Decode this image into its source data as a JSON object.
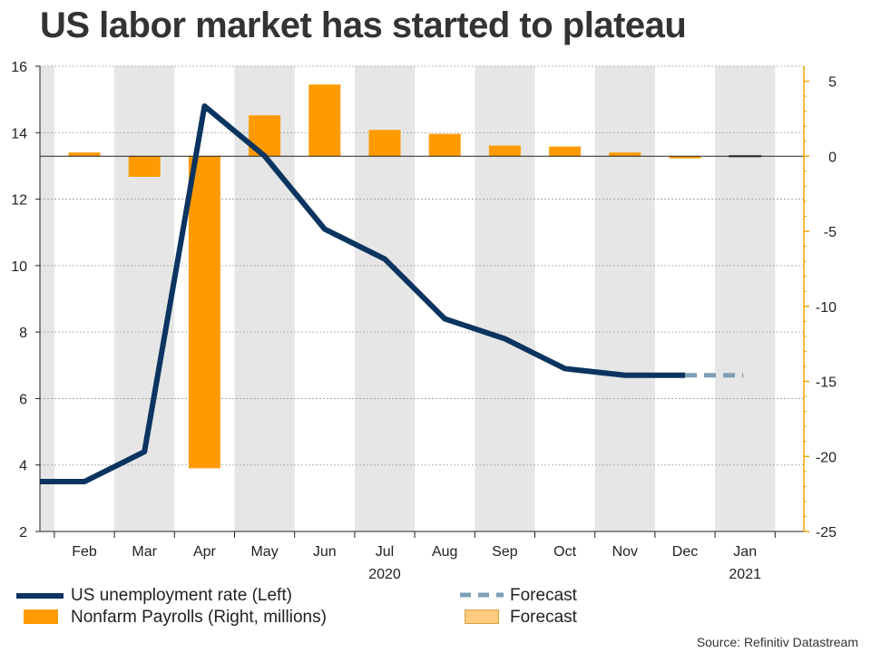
{
  "title": "US labor market has started to plateau",
  "source": "Source: Refinitiv Datastream",
  "colors": {
    "unemployment": "#0b3460",
    "payrolls": "#ff9b00",
    "forecast_line": "#7f9fb5",
    "forecast_bar": "#ffcc7f",
    "shading": "#e6e6e6",
    "right_axis": "#f0a500"
  },
  "legend": {
    "unemployment": "US unemployment rate (Left)",
    "payrolls": "Nonfarm Payrolls (Right, millions)",
    "forecast_line": "Forecast",
    "forecast_bar": "Forecast"
  },
  "chart_data": {
    "type": "bar",
    "categories": [
      "Feb",
      "Mar",
      "Apr",
      "May",
      "Jun",
      "Jul",
      "Aug",
      "Sep",
      "Oct",
      "Nov",
      "Dec",
      "Jan"
    ],
    "year_labels": [
      {
        "label": "2020",
        "category": "Jul"
      },
      {
        "label": "2021",
        "category": "Jan"
      }
    ],
    "left_axis": {
      "ylim": [
        2,
        16
      ],
      "ticks": [
        2,
        4,
        6,
        8,
        10,
        12,
        14,
        16
      ]
    },
    "right_axis": {
      "ylim": [
        -25,
        6
      ],
      "ticks": [
        5,
        0,
        -5,
        -10,
        -15,
        -20,
        -25
      ]
    },
    "grid": true,
    "shaded_months": [
      "Jan",
      "Mar",
      "May",
      "Jul",
      "Sep",
      "Nov",
      "Jan"
    ],
    "series": [
      {
        "name": "US unemployment rate (Left)",
        "type": "line",
        "axis": "left",
        "x": [
          "Jan",
          "Feb",
          "Mar",
          "Apr",
          "May",
          "Jun",
          "Jul",
          "Aug",
          "Sep",
          "Oct",
          "Nov",
          "Dec"
        ],
        "values": [
          3.5,
          3.5,
          4.4,
          14.8,
          13.3,
          11.1,
          10.2,
          8.4,
          7.8,
          6.9,
          6.7,
          6.7
        ]
      },
      {
        "name": "Forecast",
        "type": "line-dashed",
        "axis": "left",
        "x": [
          "Dec",
          "Jan"
        ],
        "values": [
          6.7,
          6.7
        ]
      },
      {
        "name": "Nonfarm Payrolls (Right, millions)",
        "type": "bar",
        "axis": "right",
        "x": [
          "Feb",
          "Mar",
          "Apr",
          "May",
          "Jun",
          "Jul",
          "Aug",
          "Sep",
          "Oct",
          "Nov",
          "Dec"
        ],
        "values": [
          0.25,
          -1.37,
          -20.79,
          2.73,
          4.78,
          1.76,
          1.49,
          0.71,
          0.65,
          0.25,
          -0.14
        ]
      },
      {
        "name": "Forecast",
        "type": "bar",
        "axis": "right",
        "x": [
          "Jan"
        ],
        "values": [
          0.05
        ]
      }
    ]
  }
}
